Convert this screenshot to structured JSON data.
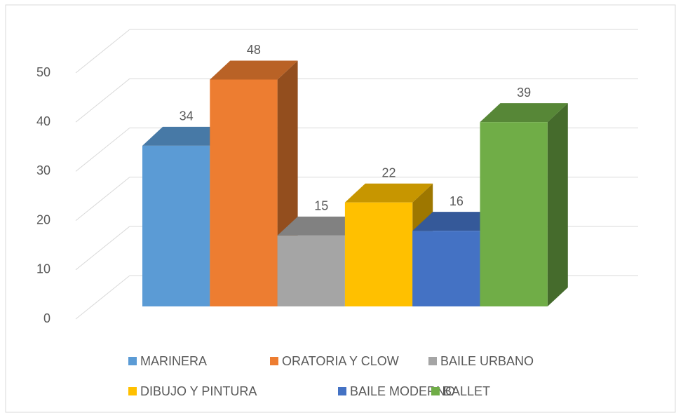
{
  "chart_data": {
    "type": "bar3d",
    "categories": [
      null
    ],
    "series": [
      {
        "name": "MARINERA",
        "color": "#5b9bd5",
        "values": [
          34
        ]
      },
      {
        "name": "ORATORIA Y CLOW",
        "color": "#ed7d31",
        "values": [
          48
        ]
      },
      {
        "name": "BAILE URBANO",
        "color": "#a5a5a5",
        "values": [
          15
        ]
      },
      {
        "name": "DIBUJO Y PINTURA",
        "color": "#ffc000",
        "values": [
          22
        ]
      },
      {
        "name": "BAILE MODERNO",
        "color": "#4472c4",
        "values": [
          16
        ]
      },
      {
        "name": "BALLET",
        "color": "#70ad47",
        "values": [
          39
        ]
      }
    ],
    "ylim": [
      0,
      50
    ],
    "yticks": [
      0,
      10,
      20,
      30,
      40,
      50
    ],
    "grid": true,
    "legend": "bottom"
  }
}
